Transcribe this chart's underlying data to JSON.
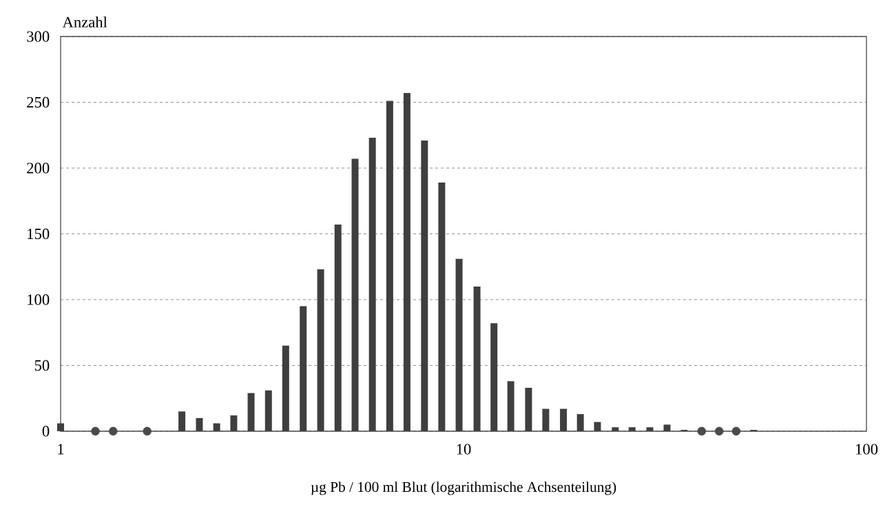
{
  "chart_data": {
    "type": "bar",
    "ylabel": "Anzahl",
    "xlabel": "µg Pb / 100 ml Blut (logarithmische Achsenteilung)",
    "log": "x",
    "grid": "y",
    "xlim": [
      1,
      100
    ],
    "xticks": [
      1,
      10,
      100
    ],
    "ylim": [
      0,
      300
    ],
    "yticks": [
      0,
      50,
      100,
      150,
      200,
      250,
      300
    ],
    "series": [
      {
        "color": "#3f3f3f",
        "x": [
          1,
          2,
          2.21,
          2.44,
          2.69,
          2.97,
          3.28,
          3.62,
          4,
          4.42,
          4.88,
          5.38,
          5.94,
          6.56,
          7.24,
          8,
          8.83,
          9.75,
          10.8,
          11.9,
          13.1,
          14.5,
          16,
          17.7,
          19.5,
          21.5,
          23.8,
          26.2,
          29,
          32,
          35.3,
          52.5
        ],
        "values": [
          6,
          15,
          10,
          6,
          12,
          29,
          31,
          65,
          95,
          123,
          157,
          207,
          223,
          251,
          257,
          221,
          189,
          131,
          110,
          82,
          38,
          33,
          17,
          17,
          13,
          7,
          3,
          3,
          3,
          5,
          1,
          1
        ]
      },
      {
        "type": "scatter",
        "marker": "circle",
        "color": "#4a4a4a",
        "x": [
          1.22,
          1.35,
          1.64,
          39,
          43.1,
          47.5
        ],
        "values": [
          0,
          0,
          0,
          0,
          0,
          0
        ]
      }
    ]
  }
}
